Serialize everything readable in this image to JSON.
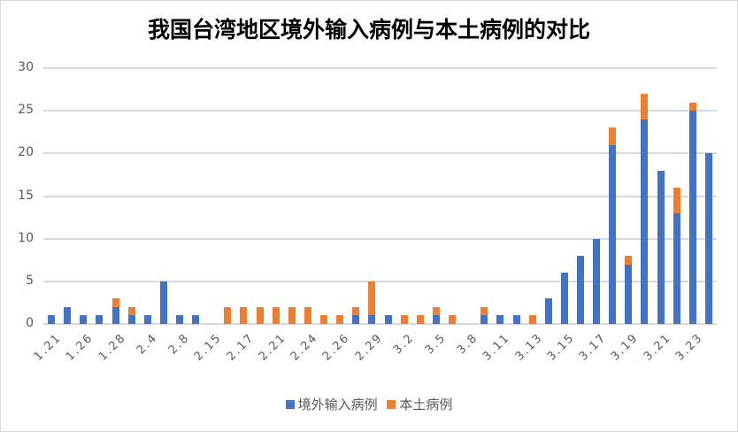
{
  "chart_data": {
    "type": "bar",
    "stacked": true,
    "title": "我国台湾地区境外输入病例与本土病例的对比",
    "xlabel": "",
    "ylabel": "",
    "ylim": [
      0,
      30
    ],
    "yticks": [
      0,
      5,
      10,
      15,
      20,
      25,
      30
    ],
    "grid": true,
    "legend_position": "bottom",
    "categories": [
      "1.21",
      "c2",
      "1.26",
      "c4",
      "1.28",
      "c6",
      "2.4",
      "c8",
      "2.8",
      "c10",
      "2.15",
      "c12",
      "2.17",
      "c14",
      "2.21",
      "c16",
      "2.24",
      "c18",
      "2.26",
      "c20",
      "2.29",
      "c22",
      "3.2",
      "c24",
      "3.5",
      "c26",
      "3.8",
      "c28",
      "3.11",
      "c30",
      "3.13",
      "c32",
      "3.15",
      "c34",
      "3.17",
      "c36",
      "3.19",
      "c38",
      "3.21",
      "c40",
      "3.23",
      "c42"
    ],
    "visible_tick_labels": [
      "1.21",
      "1.26",
      "1.28",
      "2.4",
      "2.8",
      "2.15",
      "2.17",
      "2.21",
      "2.24",
      "2.26",
      "2.29",
      "3.2",
      "3.5",
      "3.8",
      "3.11",
      "3.13",
      "3.15",
      "3.17",
      "3.19",
      "3.21",
      "3.23"
    ],
    "series": [
      {
        "name": "境外输入病例",
        "color": "#4472c4",
        "values": [
          1,
          2,
          1,
          1,
          2,
          1,
          1,
          5,
          1,
          1,
          0,
          0,
          0,
          0,
          0,
          0,
          0,
          0,
          0,
          1,
          1,
          1,
          0,
          0,
          1,
          0,
          0,
          1,
          1,
          1,
          0,
          3,
          6,
          8,
          10,
          21,
          7,
          24,
          18,
          13,
          25,
          20
        ]
      },
      {
        "name": "本土病例",
        "color": "#ed7d31",
        "values": [
          0,
          0,
          0,
          0,
          1,
          1,
          0,
          0,
          0,
          0,
          0,
          2,
          2,
          2,
          2,
          2,
          2,
          1,
          1,
          1,
          4,
          0,
          1,
          1,
          1,
          1,
          0,
          1,
          0,
          0,
          1,
          0,
          0,
          0,
          0,
          2,
          1,
          3,
          0,
          3,
          1,
          0
        ]
      }
    ]
  },
  "legend": {
    "items": [
      {
        "label": "境外输入病例",
        "color": "#4472c4"
      },
      {
        "label": "本土病例",
        "color": "#ed7d31"
      }
    ]
  }
}
